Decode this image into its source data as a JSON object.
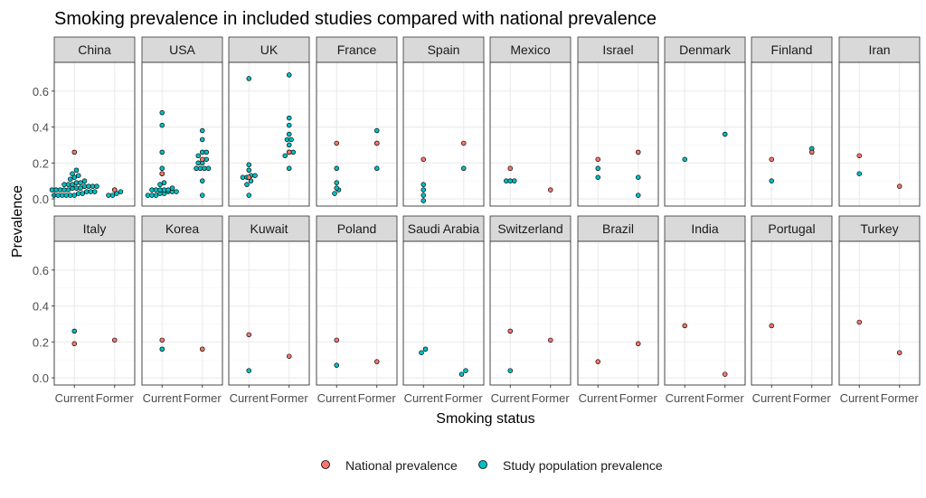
{
  "chart_data": {
    "type": "scatter",
    "title": "Smoking prevalence in included studies compared with national prevalence",
    "xlabel": "Smoking status",
    "ylabel": "Prevalence",
    "categories": [
      "Current",
      "Former"
    ],
    "y_ticks": [
      "0.0",
      "0.2",
      "0.4",
      "0.6"
    ],
    "ylim": [
      -0.04,
      0.76
    ],
    "grid": true,
    "legend_position": "bottom",
    "legend": [
      {
        "name": "National prevalence",
        "color": "#F8766D"
      },
      {
        "name": "Study population prevalence",
        "color": "#00BFC4"
      }
    ],
    "panels": [
      {
        "name": "China",
        "national": {
          "Current": [
            0.26
          ],
          "Former": [
            0.05
          ]
        },
        "study": {
          "Current": [
            0.02,
            0.02,
            0.02,
            0.02,
            0.02,
            0.02,
            0.03,
            0.03,
            0.04,
            0.04,
            0.04,
            0.05,
            0.05,
            0.05,
            0.05,
            0.05,
            0.06,
            0.06,
            0.06,
            0.07,
            0.07,
            0.07,
            0.07,
            0.08,
            0.08,
            0.08,
            0.09,
            0.09,
            0.1,
            0.11,
            0.12,
            0.13,
            0.14,
            0.16
          ],
          "Former": [
            0.02,
            0.02,
            0.03,
            0.04,
            0.05
          ]
        }
      },
      {
        "name": "USA",
        "national": {
          "Current": [
            0.14
          ],
          "Former": [
            0.22
          ]
        },
        "study": {
          "Current": [
            0.02,
            0.02,
            0.02,
            0.03,
            0.03,
            0.04,
            0.04,
            0.04,
            0.05,
            0.05,
            0.05,
            0.05,
            0.05,
            0.06,
            0.08,
            0.09,
            0.14,
            0.17,
            0.26,
            0.41,
            0.48
          ],
          "Former": [
            0.02,
            0.1,
            0.17,
            0.17,
            0.17,
            0.17,
            0.2,
            0.2,
            0.22,
            0.24,
            0.26,
            0.26,
            0.33,
            0.38
          ]
        }
      },
      {
        "name": "UK",
        "national": {
          "Current": [
            0.12
          ],
          "Former": [
            0.26
          ]
        },
        "study": {
          "Current": [
            0.02,
            0.08,
            0.1,
            0.12,
            0.12,
            0.13,
            0.13,
            0.16,
            0.19,
            0.67
          ],
          "Former": [
            0.17,
            0.24,
            0.26,
            0.26,
            0.3,
            0.33,
            0.33,
            0.36,
            0.41,
            0.45,
            0.69
          ]
        }
      },
      {
        "name": "France",
        "national": {
          "Current": [
            0.31
          ],
          "Former": [
            0.31
          ]
        },
        "study": {
          "Current": [
            0.03,
            0.05,
            0.06,
            0.09,
            0.17
          ],
          "Former": [
            0.17,
            0.31,
            0.38
          ]
        }
      },
      {
        "name": "Spain",
        "national": {
          "Current": [
            0.22
          ],
          "Former": [
            0.31
          ]
        },
        "study": {
          "Current": [
            -0.01,
            0.02,
            0.05,
            0.08
          ],
          "Former": [
            0.17
          ]
        }
      },
      {
        "name": "Mexico",
        "national": {
          "Current": [
            0.17
          ],
          "Former": [
            0.05
          ]
        },
        "study": {
          "Current": [
            0.1,
            0.1,
            0.1
          ],
          "Former": []
        }
      },
      {
        "name": "Israel",
        "national": {
          "Current": [
            0.22
          ],
          "Former": [
            0.26
          ]
        },
        "study": {
          "Current": [
            0.12,
            0.17
          ],
          "Former": [
            0.02,
            0.12
          ]
        }
      },
      {
        "name": "Denmark",
        "national": {
          "Current": [],
          "Former": []
        },
        "study": {
          "Current": [
            0.22
          ],
          "Former": [
            0.36
          ]
        }
      },
      {
        "name": "Finland",
        "national": {
          "Current": [
            0.22
          ],
          "Former": [
            0.26
          ]
        },
        "study": {
          "Current": [
            0.1
          ],
          "Former": [
            0.28
          ]
        }
      },
      {
        "name": "Iran",
        "national": {
          "Current": [
            0.24
          ],
          "Former": [
            0.07
          ]
        },
        "study": {
          "Current": [
            0.14
          ],
          "Former": []
        }
      },
      {
        "name": "Italy",
        "national": {
          "Current": [
            0.19
          ],
          "Former": [
            0.21
          ]
        },
        "study": {
          "Current": [
            0.26
          ],
          "Former": []
        }
      },
      {
        "name": "Korea",
        "national": {
          "Current": [
            0.21
          ],
          "Former": [
            0.16
          ]
        },
        "study": {
          "Current": [
            0.16
          ],
          "Former": []
        }
      },
      {
        "name": "Kuwait",
        "national": {
          "Current": [
            0.24
          ],
          "Former": [
            0.12
          ]
        },
        "study": {
          "Current": [
            0.04
          ],
          "Former": []
        }
      },
      {
        "name": "Poland",
        "national": {
          "Current": [
            0.21
          ],
          "Former": [
            0.09
          ]
        },
        "study": {
          "Current": [
            0.07
          ],
          "Former": []
        }
      },
      {
        "name": "Saudi Arabia",
        "national": {
          "Current": [],
          "Former": []
        },
        "study": {
          "Current": [
            0.14,
            0.16
          ],
          "Former": [
            0.02,
            0.04
          ]
        }
      },
      {
        "name": "Switzerland",
        "national": {
          "Current": [
            0.26
          ],
          "Former": [
            0.21
          ]
        },
        "study": {
          "Current": [
            0.04
          ],
          "Former": []
        }
      },
      {
        "name": "Brazil",
        "national": {
          "Current": [
            0.09
          ],
          "Former": [
            0.19
          ]
        },
        "study": {
          "Current": [],
          "Former": []
        }
      },
      {
        "name": "India",
        "national": {
          "Current": [
            0.29
          ],
          "Former": [
            0.02
          ]
        },
        "study": {
          "Current": [],
          "Former": []
        }
      },
      {
        "name": "Portugal",
        "national": {
          "Current": [
            0.29
          ],
          "Former": []
        },
        "study": {
          "Current": [],
          "Former": []
        }
      },
      {
        "name": "Turkey",
        "national": {
          "Current": [
            0.31
          ],
          "Former": [
            0.14
          ]
        },
        "study": {
          "Current": [],
          "Former": []
        }
      }
    ]
  }
}
